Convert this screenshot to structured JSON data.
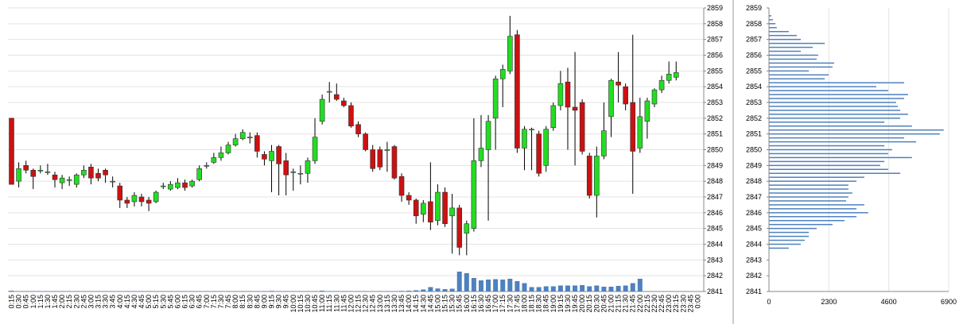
{
  "chart_data": [
    {
      "type": "candlestick",
      "categories": [
        "0:15",
        "0:30",
        "0:45",
        "1:00",
        "1:15",
        "1:30",
        "1:45",
        "2:00",
        "2:15",
        "2:30",
        "2:45",
        "3:00",
        "3:15",
        "3:30",
        "3:45",
        "4:00",
        "4:15",
        "4:30",
        "4:45",
        "5:00",
        "5:15",
        "5:30",
        "5:45",
        "6:00",
        "6:15",
        "6:30",
        "6:45",
        "7:00",
        "7:15",
        "7:30",
        "7:45",
        "8:00",
        "8:15",
        "8:30",
        "8:45",
        "9:00",
        "9:15",
        "9:30",
        "9:45",
        "10:00",
        "10:15",
        "10:30",
        "10:45",
        "11:00",
        "11:15",
        "11:30",
        "11:45",
        "12:00",
        "12:15",
        "12:30",
        "12:45",
        "13:00",
        "13:15",
        "13:30",
        "13:45",
        "14:00",
        "14:15",
        "14:30",
        "14:45",
        "15:00",
        "15:15",
        "15:30",
        "15:45",
        "16:00",
        "16:15",
        "16:30",
        "16:45",
        "17:00",
        "17:15",
        "17:30",
        "17:45",
        "18:00",
        "18:15",
        "18:30",
        "18:45",
        "19:00",
        "19:15",
        "19:30",
        "19:45",
        "20:00",
        "20:15",
        "20:30",
        "20:45",
        "21:00",
        "21:15",
        "21:30",
        "21:45",
        "22:00",
        "22:15",
        "22:30",
        "22:45",
        "23:00",
        "23:15",
        "23:30",
        "23:45",
        "0:00"
      ],
      "open": [
        2852,
        2848,
        2849,
        2848.7,
        2848.7,
        2848.6,
        2848.4,
        2847.9,
        2848.1,
        2847.8,
        2848.4,
        2848.9,
        2848.5,
        2848.7,
        2848,
        2847.7,
        2846.8,
        2846.7,
        2847,
        2846.8,
        2846.7,
        2847.7,
        2847.5,
        2847.6,
        2847.9,
        2847.7,
        2848.1,
        2849,
        2849.2,
        2849.5,
        2849.8,
        2850.3,
        2850.7,
        2850.8,
        2850.9,
        2849.7,
        2849.3,
        2850.2,
        2849.3,
        2848.6,
        2848.5,
        2848.5,
        2849.3,
        2851.8,
        2853.7,
        2853.5,
        2853.1,
        2852.8,
        2851.6,
        2851,
        2850,
        2850,
        2850,
        2850.2,
        2848.3,
        2847.1,
        2846.8,
        2845.9,
        2846.7,
        2845.5,
        2847.3,
        2845.8,
        2846.3,
        2844.7,
        2845,
        2849.3,
        2850,
        2852,
        2854.5,
        2855,
        2857.3,
        2850.1,
        2851.3,
        2851,
        2849,
        2851.4,
        2852.8,
        2854.3,
        2852.7,
        2853,
        2849.6,
        2847.1,
        2849.6,
        2852.1,
        2854.3,
        2854,
        2853,
        2850.1,
        2851.8,
        2852.9,
        2853.8,
        2854.4,
        2854.6,
        null,
        null,
        null
      ],
      "high": [
        2852,
        2849.2,
        2849.3,
        2848.8,
        2849,
        2849.1,
        2848.6,
        2848.4,
        2848.3,
        2848.5,
        2849,
        2849.1,
        2848.8,
        2848.8,
        2848.3,
        2847.9,
        2847,
        2847.3,
        2847.2,
        2847,
        2847.4,
        2847.9,
        2848,
        2848.2,
        2848.1,
        2848.1,
        2849,
        2849.2,
        2849.8,
        2850.2,
        2850.5,
        2851,
        2851.3,
        2851.1,
        2851.1,
        2849.9,
        2850.3,
        2850.3,
        2849.8,
        2848.8,
        2849,
        2849.5,
        2852,
        2853.5,
        2854.3,
        2854.2,
        2853.3,
        2853,
        2851.8,
        2851.1,
        2850.3,
        2850.2,
        2850.5,
        2850.3,
        2848.5,
        2847.3,
        2846.9,
        2846.8,
        2849.2,
        2847.8,
        2847.6,
        2847.2,
        2846.5,
        2845.5,
        2852,
        2852.2,
        2852.2,
        2854.7,
        2855.4,
        2858.5,
        2857.6,
        2851.5,
        2851.4,
        2851.2,
        2851.5,
        2853,
        2855,
        2855.2,
        2856.2,
        2853.2,
        2849.8,
        2850.2,
        2853,
        2854.5,
        2856.2,
        2854.2,
        2857.3,
        2853.3,
        2853.3,
        2853.9,
        2854.7,
        2855.6,
        2855.6,
        null,
        null,
        null
      ],
      "low": [
        2847.8,
        2847.6,
        2848.5,
        2847.5,
        2848.5,
        2848.4,
        2847.6,
        2847.5,
        2847.7,
        2847.6,
        2848.2,
        2847.8,
        2848,
        2847.9,
        2847.6,
        2846.3,
        2846.3,
        2846.4,
        2846.4,
        2846.1,
        2846.6,
        2847.5,
        2847.4,
        2847.5,
        2847.4,
        2847.6,
        2848,
        2848.8,
        2849.1,
        2849.3,
        2849.7,
        2850.2,
        2850.6,
        2850.4,
        2849.5,
        2849,
        2847.3,
        2847.1,
        2847.1,
        2847.4,
        2847.8,
        2847.9,
        2849.1,
        2851.6,
        2853,
        2853.1,
        2852.7,
        2851.4,
        2850.8,
        2849.9,
        2848.6,
        2848.7,
        2848.6,
        2848.1,
        2846.7,
        2846.5,
        2845.3,
        2845.4,
        2844.9,
        2845.2,
        2845.1,
        2843.4,
        2843.3,
        2843.3,
        2844.8,
        2848.9,
        2845.5,
        2850,
        2852.7,
        2854.8,
        2849.8,
        2848.7,
        2848.7,
        2848.3,
        2848.6,
        2851.2,
        2852.5,
        2850,
        2849,
        2849.7,
        2846.9,
        2845.7,
        2849.4,
        2850.8,
        2853,
        2852.5,
        2847.2,
        2849.8,
        2850.7,
        2852.7,
        2853.6,
        2854.2,
        2854.4,
        null,
        null,
        null
      ],
      "close": [
        2847.8,
        2848.8,
        2848.7,
        2848.3,
        2848.7,
        2848.6,
        2848.1,
        2848.2,
        2848.1,
        2848.4,
        2848.7,
        2848.2,
        2848.2,
        2848.4,
        2848,
        2846.8,
        2846.6,
        2847.1,
        2846.7,
        2846.6,
        2847.3,
        2847.7,
        2847.8,
        2847.9,
        2847.6,
        2848,
        2848.8,
        2849,
        2849.5,
        2849.8,
        2850.3,
        2850.7,
        2851.1,
        2850.8,
        2849.9,
        2849.4,
        2849.9,
        2849.1,
        2848.4,
        2848.6,
        2848.5,
        2849.3,
        2850.8,
        2853.2,
        2853.7,
        2853.2,
        2852.8,
        2851.5,
        2851,
        2850,
        2848.8,
        2848.9,
        2850,
        2848.2,
        2847.1,
        2846.8,
        2845.8,
        2846.6,
        2845.4,
        2847.3,
        2845.3,
        2846.3,
        2843.8,
        2845.3,
        2849.3,
        2850.1,
        2851.8,
        2854.5,
        2855.1,
        2857.2,
        2850.1,
        2851.3,
        2851.3,
        2848.5,
        2851.3,
        2852.8,
        2854.2,
        2852.7,
        2852.5,
        2849.9,
        2847.1,
        2849.6,
        2851.2,
        2854.4,
        2854.1,
        2852.9,
        2849.9,
        2852.1,
        2853.1,
        2853.8,
        2854.4,
        2854.8,
        2854.9,
        null,
        null,
        null
      ],
      "volume": [
        40,
        15,
        15,
        15,
        15,
        15,
        15,
        15,
        15,
        15,
        15,
        15,
        15,
        15,
        15,
        15,
        15,
        15,
        15,
        15,
        15,
        15,
        15,
        15,
        15,
        15,
        15,
        15,
        15,
        15,
        15,
        15,
        15,
        15,
        15,
        15,
        30,
        15,
        15,
        15,
        15,
        15,
        15,
        40,
        15,
        15,
        15,
        15,
        15,
        15,
        15,
        15,
        15,
        20,
        30,
        40,
        60,
        100,
        220,
        150,
        120,
        140,
        1000,
        920,
        680,
        560,
        600,
        620,
        600,
        640,
        520,
        420,
        220,
        220,
        260,
        260,
        300,
        300,
        300,
        320,
        260,
        300,
        240,
        240,
        280,
        300,
        420,
        640,
        0,
        0,
        0,
        0,
        0,
        null,
        null,
        null
      ],
      "up_color": "#22dd22",
      "down_color": "#cc1111",
      "volume_color": "#4f81bd",
      "ylim": [
        2841,
        2859
      ],
      "yticks": [
        2841,
        2842,
        2843,
        2844,
        2845,
        2846,
        2847,
        2848,
        2849,
        2850,
        2851,
        2852,
        2853,
        2854,
        2855,
        2856,
        2857,
        2858,
        2859
      ],
      "grid": true
    },
    {
      "type": "profile",
      "levels": [
        2858.5,
        2858.25,
        2858,
        2857.75,
        2857.5,
        2857.25,
        2857,
        2856.75,
        2856.5,
        2856.25,
        2856,
        2855.75,
        2855.5,
        2855.25,
        2855,
        2854.75,
        2854.5,
        2854.25,
        2854,
        2853.75,
        2853.5,
        2853.25,
        2853,
        2852.75,
        2852.5,
        2852.25,
        2852,
        2851.75,
        2851.5,
        2851.25,
        2851,
        2850.75,
        2850.5,
        2850.25,
        2850,
        2849.75,
        2849.5,
        2849.25,
        2849,
        2848.75,
        2848.5,
        2848.25,
        2848,
        2847.75,
        2847.5,
        2847.25,
        2847,
        2846.75,
        2846.5,
        2846.25,
        2846,
        2845.75,
        2845.5,
        2845.25,
        2845,
        2844.75,
        2844.5,
        2844.25,
        2844,
        2843.75
      ],
      "values": [
        90,
        150,
        250,
        300,
        760,
        1070,
        1220,
        2140,
        1680,
        1220,
        1890,
        1830,
        2500,
        2440,
        1530,
        2290,
        2140,
        5190,
        4120,
        4580,
        5340,
        5190,
        4880,
        4950,
        5040,
        5340,
        5040,
        4430,
        5490,
        6710,
        6560,
        5190,
        5650,
        4430,
        4730,
        4580,
        5490,
        4430,
        4270,
        4580,
        5040,
        3660,
        3360,
        3050,
        3050,
        3200,
        3050,
        2960,
        3660,
        3360,
        3810,
        3360,
        2900,
        2440,
        1830,
        1530,
        1530,
        1370,
        1220,
        760
      ],
      "color": "#4f81bd",
      "ylim": [
        2841,
        2859
      ],
      "yticks": [
        2841,
        2842,
        2843,
        2844,
        2845,
        2846,
        2847,
        2848,
        2849,
        2850,
        2851,
        2852,
        2853,
        2854,
        2855,
        2856,
        2857,
        2858,
        2859
      ],
      "xlim": [
        0,
        6900
      ],
      "xticks": [
        0,
        2300,
        4600,
        6900
      ],
      "grid": true
    }
  ]
}
